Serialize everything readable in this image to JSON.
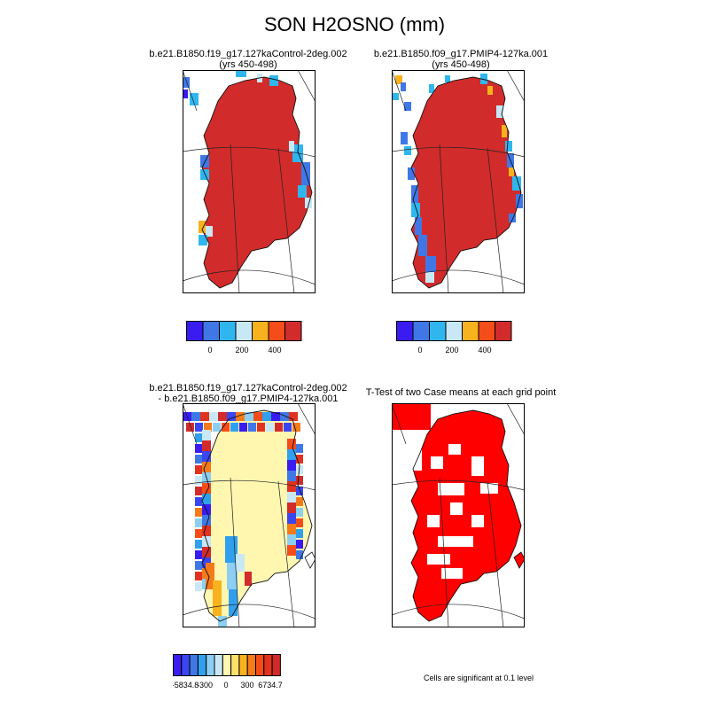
{
  "title": "SON H2OSNO (mm)",
  "panels": [
    {
      "id": "control",
      "title_lines": [
        "b.e21.B1850.f19_g17.127kaControl-2deg.002",
        "(yrs 450-498)"
      ],
      "colorbar": {
        "colors": [
          "#3a1cf0",
          "#3f78e6",
          "#30b6ee",
          "#c8e8f6",
          "#f7b21d",
          "#f54d19",
          "#d22b2b"
        ],
        "labels": [
          "0",
          "200",
          "400"
        ]
      }
    },
    {
      "id": "pmip4",
      "title_lines": [
        "b.e21.B1850.f09_g17.PMIP4-127ka.001",
        "(yrs 450-498)"
      ],
      "colorbar": {
        "colors": [
          "#3a1cf0",
          "#3f78e6",
          "#30b6ee",
          "#c8e8f6",
          "#f7b21d",
          "#f54d19",
          "#d22b2b"
        ],
        "labels": [
          "0",
          "200",
          "400"
        ]
      }
    },
    {
      "id": "difference",
      "title_lines": [
        "b.e21.B1850.f19_g17.127kaControl-2deg.002",
        "- b.e21.B1850.f09_g17.PMIP4-127ka.001"
      ],
      "colorbar": {
        "colors": [
          "#3a1cf0",
          "#3a46f0",
          "#3f78e6",
          "#30a0ee",
          "#8ccff2",
          "#c8e8f6",
          "#fff6b0",
          "#fde06b",
          "#f7b21d",
          "#f57a19",
          "#f54d19",
          "#e0331f",
          "#d22b2b"
        ],
        "labels": [
          "-5834.8",
          "-300",
          "0",
          "300",
          "6734.7"
        ]
      }
    },
    {
      "id": "ttest",
      "title_lines": [
        "T-Test of two Case means at each grid point"
      ],
      "note": "Cells are significant at 0.1 level"
    }
  ],
  "chart_data": [
    {
      "type": "heatmap",
      "title": "b.e21.B1850.f19_g17.127kaControl-2deg.002 (yrs 450-498)",
      "units": "mm",
      "color_levels_labeled": [
        0,
        200,
        400
      ],
      "dominant_value": "above 400"
    },
    {
      "type": "heatmap",
      "title": "b.e21.B1850.f09_g17.PMIP4-127ka.001 (yrs 450-498)",
      "units": "mm",
      "color_levels_labeled": [
        0,
        200,
        400
      ],
      "dominant_value": "above 400"
    },
    {
      "type": "heatmap",
      "title": "b.e21.B1850.f19_g17.127kaControl-2deg.002 - b.e21.B1850.f09_g17.PMIP4-127ka.001",
      "units": "mm",
      "min": -5834.8,
      "max": 6734.7,
      "color_levels_labeled": [
        -300,
        0,
        300
      ],
      "dominant_value": "near 0"
    },
    {
      "type": "heatmap",
      "title": "T-Test of two Case means at each grid point",
      "significance_level": 0.1
    }
  ]
}
